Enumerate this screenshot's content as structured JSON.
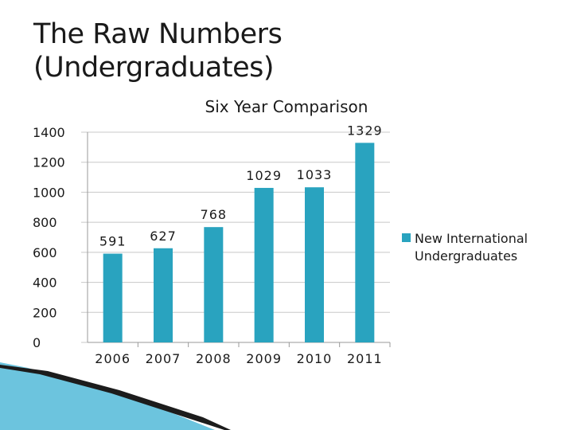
{
  "slide": {
    "title_line1": "The Raw Numbers",
    "title_line2": "(Undergraduates)"
  },
  "colors": {
    "bar": "#29a3bf",
    "grid": "#c8c8c8",
    "text": "#1a1a1a",
    "swoosh_dark": "#1c1c1c",
    "swoosh_light": "#6cc4de"
  },
  "chart_data": {
    "type": "bar",
    "title": "Six Year Comparison",
    "xlabel": "",
    "ylabel": "",
    "categories": [
      "2006",
      "2007",
      "2008",
      "2009",
      "2010",
      "2011"
    ],
    "series": [
      {
        "name": "New International Undergraduates",
        "values": [
          591,
          627,
          768,
          1029,
          1033,
          1329
        ]
      }
    ],
    "data_labels": [
      "591",
      "627",
      "768",
      "1029",
      "1033",
      "1329"
    ],
    "ylim": [
      0,
      1400
    ],
    "yticks": [
      "0",
      "200",
      "400",
      "600",
      "800",
      "1000",
      "1200",
      "1400"
    ],
    "grid": true,
    "legend_position": "right"
  }
}
